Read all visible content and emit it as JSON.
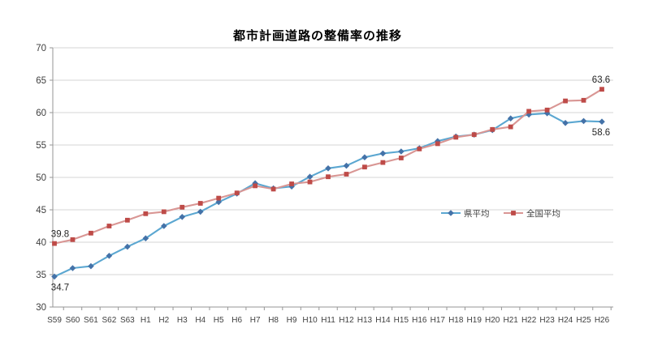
{
  "title": "都市計画道路の整備率の推移",
  "chart_data": {
    "type": "line",
    "title": "都市計画道路の整備率の推移",
    "categories": [
      "S59",
      "S60",
      "S61",
      "S62",
      "S63",
      "H1",
      "H2",
      "H3",
      "H4",
      "H5",
      "H6",
      "H7",
      "H8",
      "H9",
      "H10",
      "H11",
      "H12",
      "H13",
      "H14",
      "H15",
      "H16",
      "H17",
      "H18",
      "H19",
      "H20",
      "H21",
      "H22",
      "H23",
      "H24",
      "H25",
      "H26"
    ],
    "series": [
      {
        "name": "県平均",
        "marker": "diamond",
        "line_color": "#5BA7D1",
        "marker_color": "#4472A8",
        "values": [
          34.7,
          36.0,
          36.3,
          37.9,
          39.3,
          40.6,
          42.5,
          43.9,
          44.7,
          46.2,
          47.5,
          49.1,
          48.3,
          48.6,
          50.1,
          51.4,
          51.8,
          53.1,
          53.7,
          54.0,
          54.5,
          55.6,
          56.3,
          56.6,
          57.3,
          59.1,
          59.7,
          59.9,
          58.4,
          58.7,
          58.6
        ]
      },
      {
        "name": "全国平均",
        "marker": "square",
        "line_color": "#D99694",
        "marker_color": "#BE4B48",
        "values": [
          39.8,
          40.4,
          41.4,
          42.5,
          43.4,
          44.4,
          44.7,
          45.4,
          46.0,
          46.8,
          47.6,
          48.7,
          48.2,
          49.0,
          49.3,
          50.1,
          50.5,
          51.6,
          52.3,
          53.0,
          54.4,
          55.2,
          56.2,
          56.6,
          57.4,
          57.8,
          60.2,
          60.4,
          61.8,
          61.9,
          63.6
        ]
      }
    ],
    "ylim": [
      30,
      70
    ],
    "yticks": [
      30,
      35,
      40,
      45,
      50,
      55,
      60,
      65,
      70
    ],
    "grid": true,
    "legend_position": "inside-middle-right",
    "annotations": [
      {
        "series": "全国平均",
        "category": "S59",
        "text": "39.8",
        "position": "above"
      },
      {
        "series": "県平均",
        "category": "S59",
        "text": "34.7",
        "position": "below"
      },
      {
        "series": "全国平均",
        "category": "H26",
        "text": "63.6",
        "position": "above"
      },
      {
        "series": "県平均",
        "category": "H26",
        "text": "58.6",
        "position": "below"
      }
    ],
    "colors": {
      "background": "#FFFFFF",
      "gridline": "#D6D6D6",
      "axis": "#969696",
      "tick_label": "#404040",
      "data_label": "#262626"
    }
  }
}
